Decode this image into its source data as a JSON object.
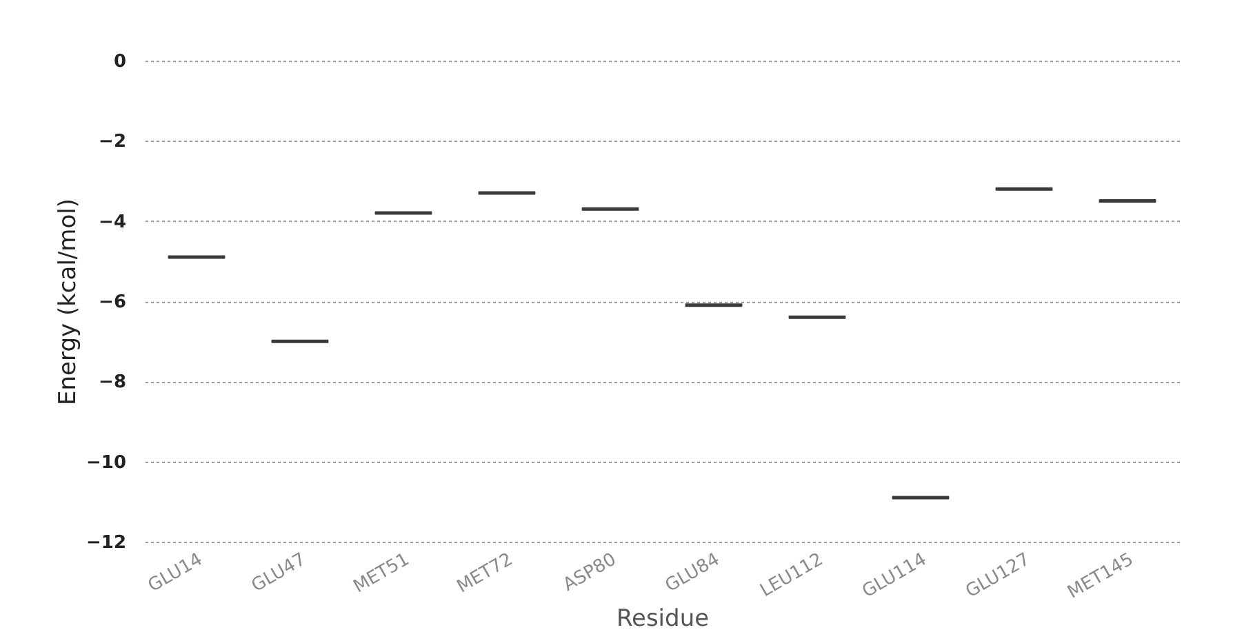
{
  "chart_data": {
    "type": "box",
    "xlabel": "Residue",
    "ylabel": "Energy (kcal/mol)",
    "categories": [
      "GLU14",
      "GLU47",
      "MET51",
      "MET72",
      "ASP80",
      "GLU84",
      "LEU112",
      "GLU114",
      "GLU127",
      "MET145"
    ],
    "series": [
      {
        "color": "#3a3a3a",
        "boxes": [
          {
            "low": -4.9,
            "q1": -4.9,
            "median": -4.9,
            "q3": -4.9,
            "high": -4.9
          },
          {
            "low": -7.0,
            "q1": -7.0,
            "median": -7.0,
            "q3": -7.0,
            "high": -7.0
          },
          {
            "low": -3.8,
            "q1": -3.8,
            "median": -3.8,
            "q3": -3.8,
            "high": -3.8
          },
          {
            "low": -3.3,
            "q1": -3.3,
            "median": -3.3,
            "q3": -3.3,
            "high": -3.3
          },
          {
            "low": -3.7,
            "q1": -3.7,
            "median": -3.7,
            "q3": -3.7,
            "high": -3.7
          },
          {
            "low": -6.1,
            "q1": -6.1,
            "median": -6.1,
            "q3": -6.1,
            "high": -6.1
          },
          {
            "low": -6.4,
            "q1": -6.4,
            "median": -6.4,
            "q3": -6.4,
            "high": -6.4
          },
          {
            "low": -10.9,
            "q1": -10.9,
            "median": -10.9,
            "q3": -10.9,
            "high": -10.9
          },
          {
            "low": -3.2,
            "q1": -3.2,
            "median": -3.2,
            "q3": -3.2,
            "high": -3.2
          },
          {
            "low": -3.5,
            "q1": -3.5,
            "median": -3.5,
            "q3": -3.5,
            "high": -3.5
          }
        ]
      }
    ],
    "ylim": [
      -12,
      0
    ],
    "yticks": [
      -12,
      -10,
      -8,
      -6,
      -4,
      -2,
      0
    ],
    "grid": "y",
    "legend": false
  }
}
